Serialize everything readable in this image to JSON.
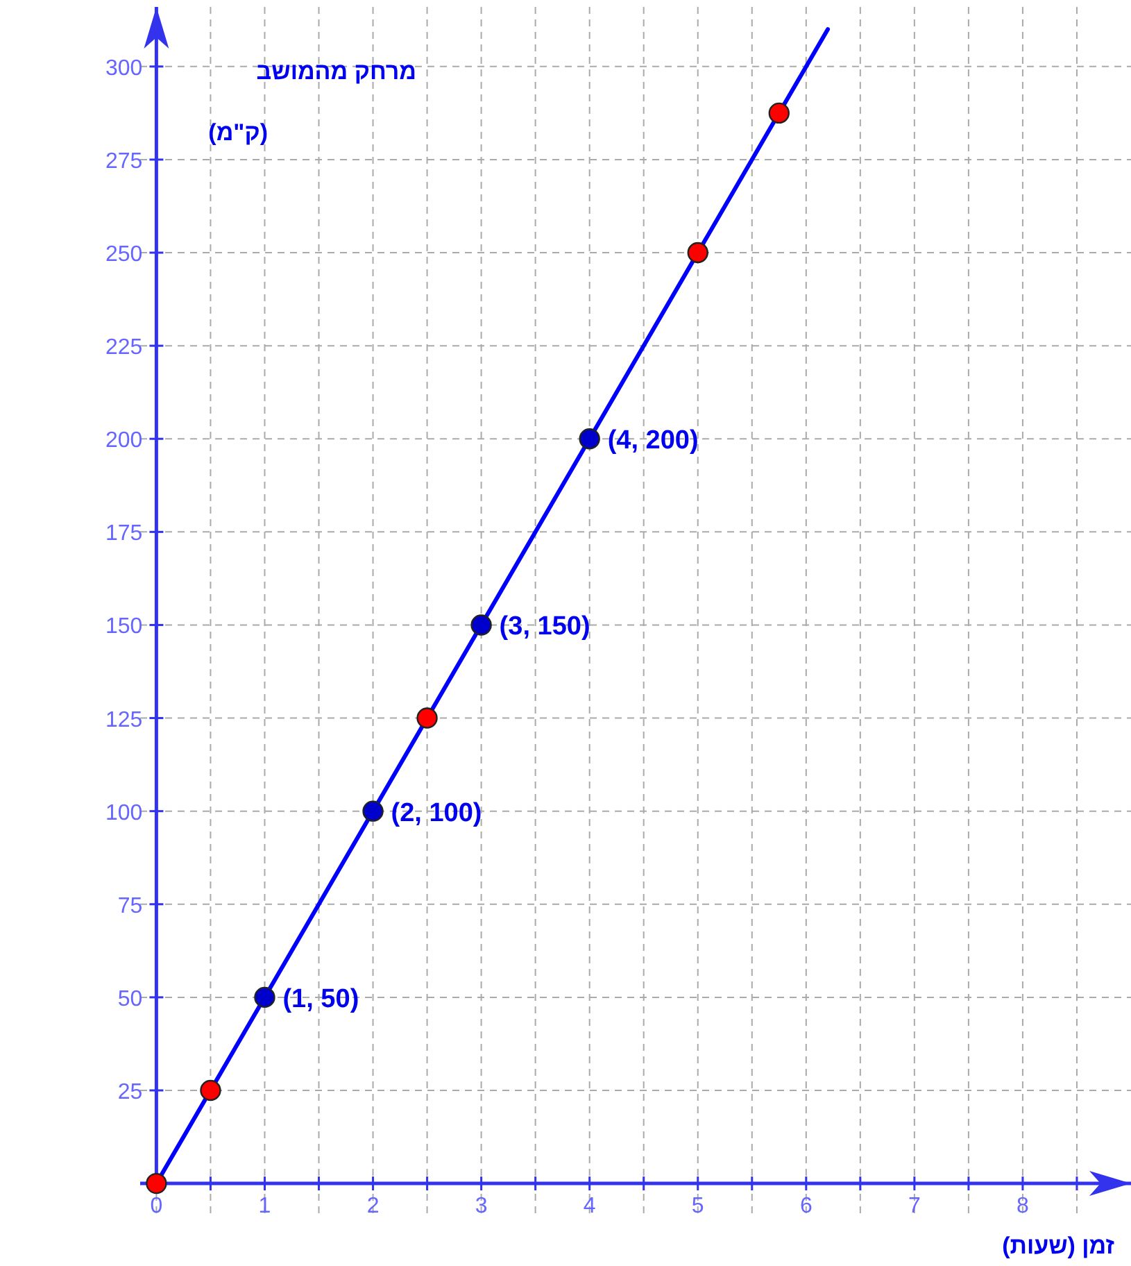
{
  "chart_data": {
    "type": "line",
    "xlabel": "זמן (שעות)",
    "ylabel": "מרחק מהמושב",
    "annotations": [
      "(ק\"מ)"
    ],
    "xlim": [
      -0.15,
      9
    ],
    "ylim": [
      -8,
      316
    ],
    "xticks": [
      0,
      {
        "value": 0.5,
        "label": null
      },
      1,
      {
        "value": 1.5,
        "label": null
      },
      2,
      {
        "value": 2.5,
        "label": null
      },
      3,
      {
        "value": 3.5,
        "label": null
      },
      4,
      {
        "value": 4.5,
        "label": null
      },
      5,
      {
        "value": 5.5,
        "label": null
      },
      6,
      {
        "value": 6.5,
        "label": null
      },
      7,
      {
        "value": 7.5,
        "label": null
      },
      8,
      {
        "value": 8.5,
        "label": null
      }
    ],
    "yticks": [
      25,
      50,
      75,
      100,
      125,
      150,
      175,
      200,
      225,
      250,
      275,
      300
    ],
    "grid": true,
    "series": [
      {
        "color": "#0000ff",
        "marker": "none",
        "x": [
          0,
          6.2
        ],
        "values": [
          0,
          310
        ]
      },
      {
        "type": "scatter",
        "color": "#0000cc",
        "marker": "circle",
        "x": [
          1,
          2,
          3,
          4
        ],
        "values": [
          50,
          100,
          150,
          200
        ],
        "value_labels": [
          "(1, 50)",
          "(2, 100)",
          "(3, 150)",
          "(4, 200)"
        ]
      },
      {
        "type": "scatter",
        "color": "#ff0000",
        "marker": "circle",
        "x": [
          0,
          0.5,
          2.5,
          5,
          5.75
        ],
        "values": [
          0,
          25,
          125,
          250,
          287.5
        ]
      }
    ]
  }
}
